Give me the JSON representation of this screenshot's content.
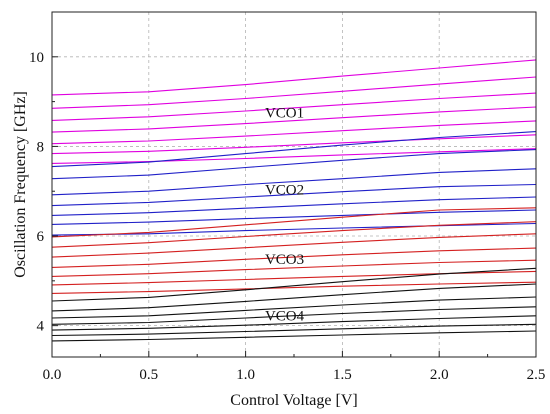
{
  "chart_data": {
    "type": "line",
    "xlabel": "Control Voltage [V]",
    "ylabel": "Oscillation Frequency [GHz]",
    "xlim": [
      0.0,
      2.5
    ],
    "ylim": [
      3.3,
      11.0
    ],
    "xticks": [
      "0.0",
      "0.5",
      "1.0",
      "1.5",
      "2.0",
      "2.5"
    ],
    "yticks": [
      "4",
      "6",
      "8",
      "10"
    ],
    "grid": true,
    "x": [
      0.0,
      0.5,
      1.0,
      1.5,
      2.0,
      2.5
    ],
    "groups": [
      {
        "label": "VCO1",
        "label_at": [
          1.1,
          8.65
        ],
        "color": "#e000e0",
        "series": [
          {
            "values": [
              9.15,
              9.22,
              9.38,
              9.57,
              9.75,
              9.93
            ]
          },
          {
            "values": [
              8.85,
              8.93,
              9.07,
              9.23,
              9.39,
              9.55
            ]
          },
          {
            "values": [
              8.58,
              8.66,
              8.79,
              8.93,
              9.07,
              9.19
            ]
          },
          {
            "values": [
              8.32,
              8.39,
              8.51,
              8.64,
              8.77,
              8.88
            ]
          },
          {
            "values": [
              8.06,
              8.12,
              8.23,
              8.35,
              8.47,
              8.57
            ]
          },
          {
            "values": [
              7.84,
              7.89,
              7.98,
              8.08,
              8.17,
              8.26
            ]
          },
          {
            "values": [
              7.62,
              7.66,
              7.73,
              7.81,
              7.88,
              7.95
            ]
          }
        ]
      },
      {
        "label": "VCO2",
        "label_at": [
          1.1,
          6.93
        ],
        "color": "#2020c8",
        "series": [
          {
            "values": [
              7.55,
              7.65,
              7.84,
              8.03,
              8.2,
              8.33
            ]
          },
          {
            "values": [
              7.28,
              7.36,
              7.53,
              7.69,
              7.84,
              7.93
            ]
          },
          {
            "values": [
              6.92,
              7.0,
              7.15,
              7.28,
              7.42,
              7.5
            ]
          },
          {
            "values": [
              6.68,
              6.75,
              6.87,
              6.99,
              7.1,
              7.15
            ]
          },
          {
            "values": [
              6.46,
              6.52,
              6.62,
              6.72,
              6.81,
              6.87
            ]
          },
          {
            "values": [
              6.26,
              6.31,
              6.39,
              6.46,
              6.53,
              6.58
            ]
          },
          {
            "values": [
              6.02,
              6.05,
              6.12,
              6.18,
              6.23,
              6.28
            ]
          }
        ]
      },
      {
        "label": "VCO3",
        "label_at": [
          1.1,
          5.38
        ],
        "color": "#d42020",
        "series": [
          {
            "values": [
              5.98,
              6.08,
              6.25,
              6.42,
              6.58,
              6.63
            ]
          },
          {
            "values": [
              5.75,
              5.85,
              5.99,
              6.12,
              6.24,
              6.32
            ]
          },
          {
            "values": [
              5.53,
              5.62,
              5.74,
              5.86,
              5.97,
              6.05
            ]
          },
          {
            "values": [
              5.3,
              5.37,
              5.48,
              5.58,
              5.67,
              5.73
            ]
          },
          {
            "values": [
              5.1,
              5.16,
              5.25,
              5.33,
              5.41,
              5.46
            ]
          },
          {
            "values": [
              4.91,
              4.96,
              5.03,
              5.1,
              5.16,
              5.21
            ]
          },
          {
            "values": [
              4.72,
              4.76,
              4.82,
              4.88,
              4.93,
              4.97
            ]
          }
        ]
      },
      {
        "label": "VCO4",
        "label_at": [
          1.1,
          4.11
        ],
        "color": "#111111",
        "series": [
          {
            "values": [
              4.55,
              4.63,
              4.8,
              4.98,
              5.15,
              5.28
            ]
          },
          {
            "values": [
              4.33,
              4.4,
              4.54,
              4.69,
              4.83,
              4.93
            ]
          },
          {
            "values": [
              4.17,
              4.22,
              4.34,
              4.46,
              4.57,
              4.64
            ]
          },
          {
            "values": [
              4.03,
              4.07,
              4.17,
              4.27,
              4.36,
              4.42
            ]
          },
          {
            "values": [
              3.9,
              3.94,
              4.01,
              4.09,
              4.16,
              4.22
            ]
          },
          {
            "values": [
              3.78,
              3.81,
              3.87,
              3.93,
              3.99,
              4.03
            ]
          },
          {
            "values": [
              3.66,
              3.69,
              3.74,
              3.79,
              3.84,
              3.88
            ]
          }
        ]
      }
    ]
  }
}
